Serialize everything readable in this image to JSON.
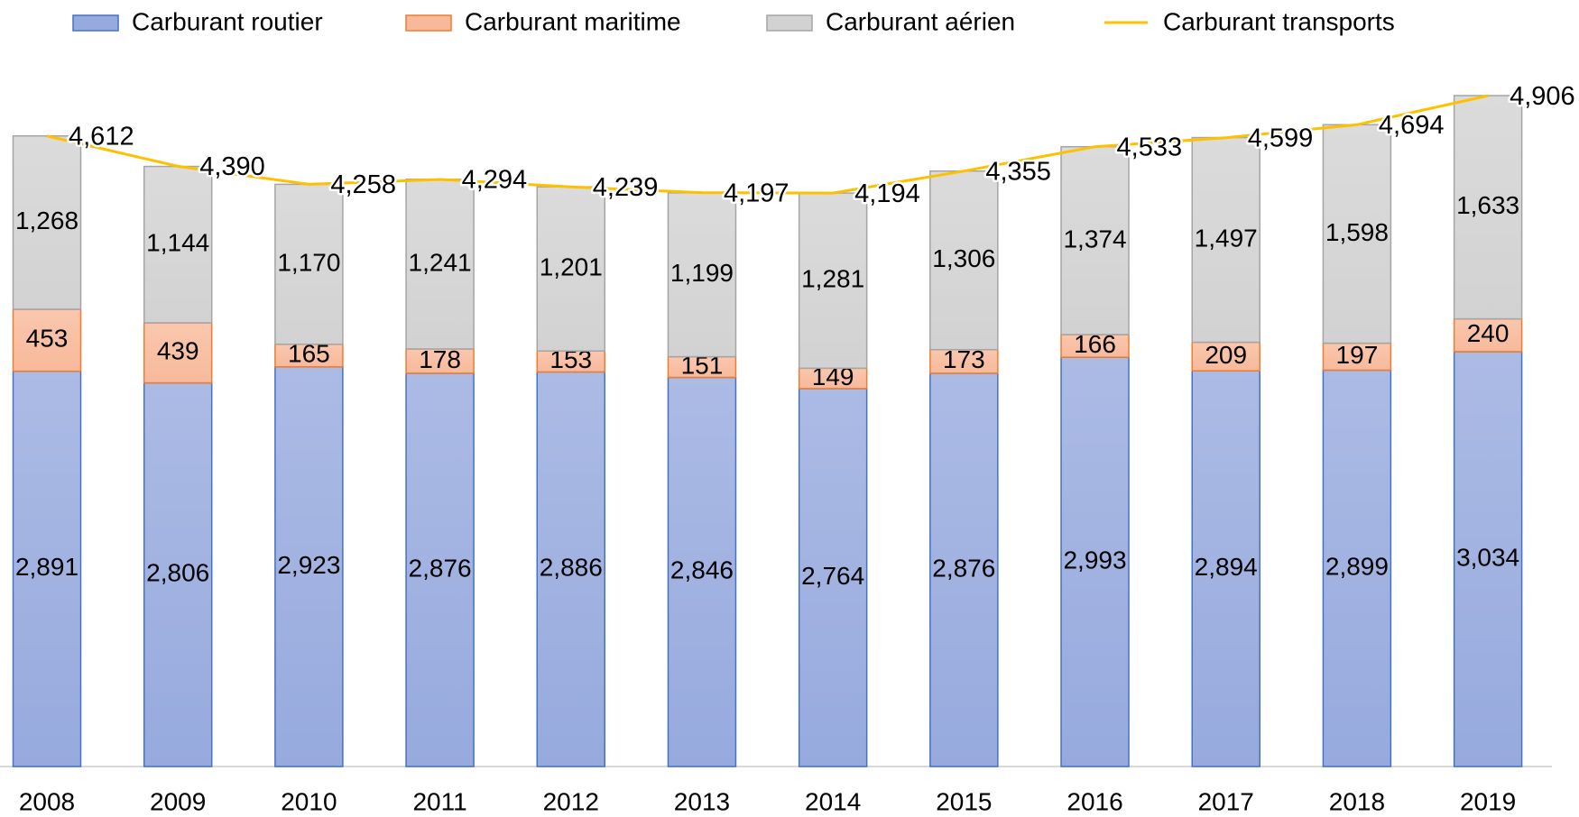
{
  "chart_data": {
    "type": "bar",
    "stacked": true,
    "categories": [
      "2008",
      "2009",
      "2010",
      "2011",
      "2012",
      "2013",
      "2014",
      "2015",
      "2016",
      "2017",
      "2018",
      "2019"
    ],
    "series": [
      {
        "name": "Carburant routier",
        "color": "#97aade",
        "stroke": "#4472c4",
        "values": [
          2891,
          2806,
          2923,
          2876,
          2886,
          2846,
          2764,
          2876,
          2993,
          2894,
          2899,
          3034
        ],
        "value_labels": [
          "2,891",
          "2,806",
          "2,923",
          "2,876",
          "2,886",
          "2,846",
          "2,764",
          "2,876",
          "2,993",
          "2,894",
          "2,899",
          "3,034"
        ]
      },
      {
        "name": "Carburant maritime",
        "color": "#f8b99a",
        "stroke": "#ed7d31",
        "values": [
          453,
          439,
          165,
          178,
          153,
          151,
          149,
          173,
          166,
          209,
          197,
          240
        ],
        "value_labels": [
          "453",
          "439",
          "165",
          "178",
          "153",
          "151",
          "149",
          "173",
          "166",
          "209",
          "197",
          "240"
        ]
      },
      {
        "name": "Carburant aérien",
        "color": "#d2d2d2",
        "stroke": "#a5a5a5",
        "values": [
          1268,
          1144,
          1170,
          1241,
          1201,
          1199,
          1281,
          1306,
          1374,
          1497,
          1598,
          1633
        ],
        "value_labels": [
          "1,268",
          "1,144",
          "1,170",
          "1,241",
          "1,201",
          "1,199",
          "1,281",
          "1,306",
          "1,374",
          "1,497",
          "1,598",
          "1,633"
        ]
      },
      {
        "name": "Carburant transports",
        "type": "line",
        "color": "#ffc000",
        "values": [
          4612,
          4390,
          4258,
          4294,
          4239,
          4197,
          4194,
          4355,
          4533,
          4599,
          4694,
          4906
        ],
        "value_labels": [
          "4,612",
          "4,390",
          "4,258",
          "4,294",
          "4,239",
          "4,197",
          "4,194",
          "4,355",
          "4,533",
          "4,599",
          "4,694",
          "4,906"
        ]
      }
    ]
  }
}
